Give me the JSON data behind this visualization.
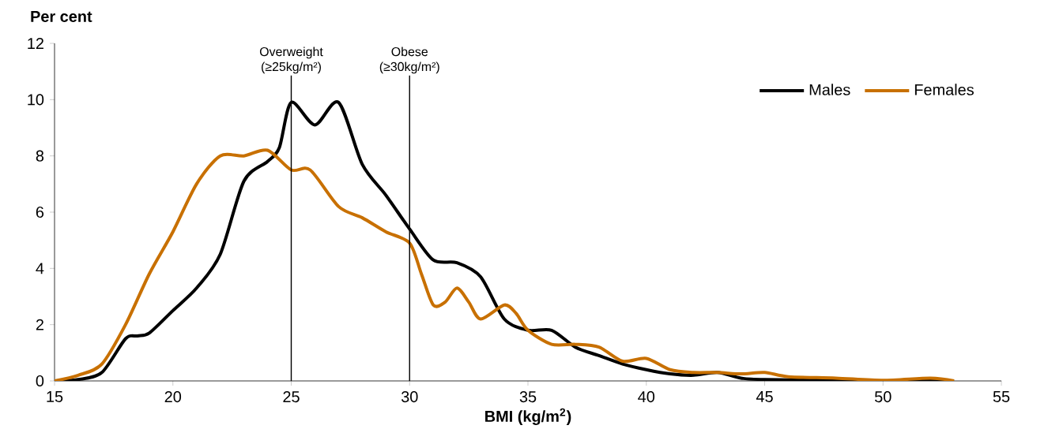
{
  "chart_data": {
    "type": "line",
    "xlabel": "BMI (kg/m$^{2}$)",
    "ylabel": "Per cent",
    "xlim": [
      15,
      55
    ],
    "ylim": [
      0,
      12
    ],
    "xticks": [
      15,
      20,
      25,
      30,
      35,
      40,
      45,
      50,
      55
    ],
    "yticks": [
      0,
      2,
      4,
      6,
      8,
      10,
      12
    ],
    "legend": "top right",
    "grid": false,
    "marker": "none",
    "line_style": "solid",
    "ref_lines": [
      {
        "axis": "x",
        "value": 25,
        "label": "Overweight (≥25kg/m²)"
      },
      {
        "axis": "x",
        "value": 30,
        "label": "Obese (≥30kg/m²)"
      }
    ],
    "series": [
      {
        "name": "Males",
        "color": "#000000",
        "x": [
          15,
          16,
          17,
          18,
          18.5,
          19,
          20,
          21,
          22,
          23,
          24,
          24.5,
          25,
          26,
          27,
          28,
          29,
          30,
          31,
          32,
          33,
          34,
          35,
          36,
          37,
          38,
          39,
          40,
          41,
          42,
          43,
          44,
          45,
          50,
          53
        ],
        "values": [
          0,
          0.05,
          0.3,
          1.5,
          1.6,
          1.7,
          2.5,
          3.3,
          4.5,
          7.1,
          7.8,
          8.3,
          9.9,
          9.1,
          9.9,
          7.7,
          6.6,
          5.4,
          4.3,
          4.2,
          3.7,
          2.2,
          1.8,
          1.8,
          1.2,
          0.9,
          0.6,
          0.4,
          0.25,
          0.2,
          0.3,
          0.1,
          0.05,
          0,
          0
        ]
      },
      {
        "name": "Females",
        "color": "#c87000",
        "x": [
          15,
          16,
          17,
          18,
          19,
          20,
          21,
          22,
          23,
          24,
          25,
          25.8,
          27,
          28,
          29,
          30,
          30.5,
          31,
          31.5,
          32,
          32.5,
          33,
          34,
          34.5,
          35,
          36,
          37,
          38,
          39,
          40,
          41,
          42,
          43,
          44,
          45,
          46,
          48,
          50,
          52,
          53
        ],
        "values": [
          0,
          0.2,
          0.6,
          2.0,
          3.8,
          5.3,
          7.0,
          8.0,
          8.0,
          8.2,
          7.5,
          7.5,
          6.2,
          5.8,
          5.3,
          4.9,
          3.8,
          2.7,
          2.8,
          3.3,
          2.8,
          2.2,
          2.7,
          2.4,
          1.8,
          1.3,
          1.3,
          1.2,
          0.7,
          0.8,
          0.4,
          0.3,
          0.3,
          0.25,
          0.3,
          0.15,
          0.1,
          0.02,
          0.1,
          0
        ]
      }
    ]
  }
}
